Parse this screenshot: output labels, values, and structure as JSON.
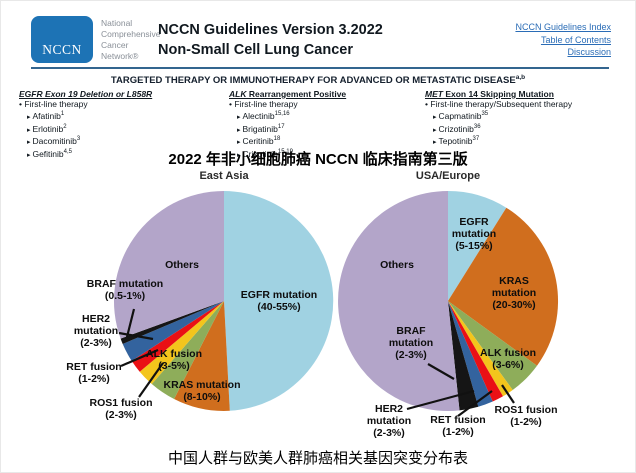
{
  "header": {
    "logo_text": "NCCN",
    "org_lines": [
      "National",
      "Comprehensive",
      "Cancer",
      "Network®"
    ],
    "title_line1": "NCCN Guidelines Version 3.2022",
    "title_line2": "Non-Small Cell Lung Cancer",
    "links": [
      "NCCN Guidelines Index",
      "Table of Contents",
      "Discussion"
    ],
    "colors": {
      "logo_blue": "#1d73b5",
      "link_blue": "#2a6cb6",
      "divider": "#33658f"
    }
  },
  "banner": {
    "text": "TARGETED THERAPY OR IMMUNOTHERAPY FOR ADVANCED OR METASTATIC DISEASE",
    "superscript": "a,b"
  },
  "therapy_columns": [
    {
      "heading": [
        {
          "text": "EGFR Exon 19 Deletion or L858R",
          "italic": true
        }
      ],
      "subheading": "First-line therapy",
      "drugs": [
        {
          "name": "Afatinib",
          "sup": "1"
        },
        {
          "name": "Erlotinib",
          "sup": "2"
        },
        {
          "name": "Dacomitinib",
          "sup": "3"
        },
        {
          "name": "Gefitinib",
          "sup": "4,5"
        }
      ]
    },
    {
      "heading": [
        {
          "text": "ALK",
          "italic": true
        },
        {
          "text": " Rearrangement Positive",
          "italic": false
        }
      ],
      "subheading": "First-line therapy",
      "drugs": [
        {
          "name": "Alectinib",
          "sup": "15,16"
        },
        {
          "name": "Brigatinib",
          "sup": "17"
        },
        {
          "name": "Ceritinib",
          "sup": "18"
        },
        {
          "name": "Crizotinib",
          "sup": "15,19"
        }
      ]
    },
    {
      "heading": [
        {
          "text": "MET",
          "italic": true
        },
        {
          "text": " Exon 14 Skipping Mutation",
          "italic": false
        }
      ],
      "subheading": "First-line therapy/Subsequent therapy",
      "drugs": [
        {
          "name": "Capmatinib",
          "sup": "35"
        },
        {
          "name": "Crizotinib",
          "sup": "36"
        },
        {
          "name": "Tepotinib",
          "sup": "37"
        }
      ]
    }
  ],
  "chinese_title": "2022 年非小细胞肺癌 NCCN 临床指南第三版",
  "bottom_caption": "中国人群与欧美人群肺癌相关基因突变分布表",
  "chart_data": [
    {
      "type": "pie",
      "title": "East Asia",
      "legend_position": "labels-on-chart",
      "slices": [
        {
          "name": "EGFR mutation",
          "range": "(40-55%)",
          "display_deg": 177,
          "color": "#a0d2e2",
          "label_lines": [
            "EGFR mutation",
            "(40-55%)"
          ],
          "label_pos": [
            166,
            111
          ]
        },
        {
          "name": "KRAS mutation",
          "range": "(8-10%)",
          "display_deg": 30,
          "color": "#d06e1e",
          "label_lines": [
            "KRAS mutation",
            "(8-10%)"
          ],
          "label_pos": [
            89,
            201
          ]
        },
        {
          "name": "ALK fusion",
          "range": "(3-5%)",
          "display_deg": 14,
          "color": "#8ead5a",
          "label_lines": [
            "ALK fusion",
            "(3-5%)"
          ],
          "label_pos": [
            61,
            170
          ]
        },
        {
          "name": "ROS1 fusion",
          "range": "(2-3%)",
          "display_deg": 9,
          "color": "#f3c51c",
          "label_lines": [
            "ROS1 fusion",
            "(2-3%)"
          ],
          "label_pos": [
            8,
            219
          ],
          "pointer": [
            [
              26,
              207
            ],
            [
              50,
              173
            ]
          ]
        },
        {
          "name": "RET fusion",
          "range": "(1-2%)",
          "display_deg": 7,
          "color": "#ea1015",
          "label_lines": [
            "RET fusion",
            "(1-2%)"
          ],
          "label_pos": [
            -19,
            183
          ],
          "pointer": [
            [
              8,
              176
            ],
            [
              45,
              160
            ]
          ]
        },
        {
          "name": "HER2 mutation",
          "range": "(2-3%)",
          "display_deg": 10,
          "color": "#33639e",
          "label_lines": [
            "HER2",
            "mutation",
            "(2-3%)"
          ],
          "label_pos": [
            -17,
            141
          ],
          "pointer": [
            [
              6,
              143
            ],
            [
              40,
              149
            ]
          ]
        },
        {
          "name": "BRAF mutation",
          "range": "(0.5-1%)",
          "display_deg": 3,
          "color": "#151515",
          "label_lines": [
            "BRAF mutation",
            "(0.5-1%)"
          ],
          "label_pos": [
            12,
            100
          ],
          "pointer": [
            [
              21,
              119
            ],
            [
              14,
              147
            ]
          ]
        },
        {
          "name": "Others",
          "range": "",
          "display_deg": 110,
          "color": "#b3a5c9",
          "label_lines": [
            "Others"
          ],
          "label_pos": [
            69,
            75
          ]
        }
      ]
    },
    {
      "type": "pie",
      "title": "USA/Europe",
      "legend_position": "labels-on-chart",
      "slices": [
        {
          "name": "EGFR mutation",
          "range": "(5-15%)",
          "display_deg": 32,
          "color": "#a0d2e2",
          "label_lines": [
            "EGFR",
            "mutation",
            "(5-15%)"
          ],
          "label_pos": [
            137,
            44
          ]
        },
        {
          "name": "KRAS mutation",
          "range": "(20-30%)",
          "display_deg": 94,
          "color": "#d06e1e",
          "label_lines": [
            "KRAS",
            "mutation",
            "(20-30%)"
          ],
          "label_pos": [
            177,
            103
          ]
        },
        {
          "name": "ALK fusion",
          "range": "(3-6%)",
          "display_deg": 18,
          "color": "#8ead5a",
          "label_lines": [
            "ALK fusion",
            "(3-6%)"
          ],
          "label_pos": [
            171,
            169
          ]
        },
        {
          "name": "ROS1 fusion",
          "range": "(1-2%)",
          "display_deg": 6,
          "color": "#f3c51c",
          "label_lines": [
            "ROS1 fusion",
            "(1-2%)"
          ],
          "label_pos": [
            189,
            226
          ],
          "pointer": [
            [
              177,
              213
            ],
            [
              165,
              195
            ]
          ]
        },
        {
          "name": "RET fusion",
          "range": "(1-2%)",
          "display_deg": 6,
          "color": "#ea1015",
          "label_lines": [
            "RET fusion",
            "(1-2%)"
          ],
          "label_pos": [
            121,
            236
          ],
          "pointer": [
            [
              121,
              226
            ],
            [
              155,
              201
            ]
          ]
        },
        {
          "name": "HER2 mutation",
          "range": "(2-3%)",
          "display_deg": 8,
          "color": "#33639e",
          "label_lines": [
            "HER2",
            "mutation",
            "(2-3%)"
          ],
          "label_pos": [
            52,
            231
          ],
          "pointer": [
            [
              70,
              219
            ],
            [
              137,
              201
            ]
          ]
        },
        {
          "name": "BRAF mutation",
          "range": "(2-3%)",
          "display_deg": 10,
          "color": "#151515",
          "label_lines": [
            "BRAF",
            "mutation",
            "(2-3%)"
          ],
          "label_pos": [
            74,
            153
          ],
          "pointer": [
            [
              91,
              174
            ],
            [
              117,
              189
            ]
          ]
        },
        {
          "name": "Others",
          "range": "",
          "display_deg": 186,
          "color": "#b3a5c9",
          "label_lines": [
            "Others"
          ],
          "label_pos": [
            60,
            75
          ]
        }
      ]
    }
  ]
}
